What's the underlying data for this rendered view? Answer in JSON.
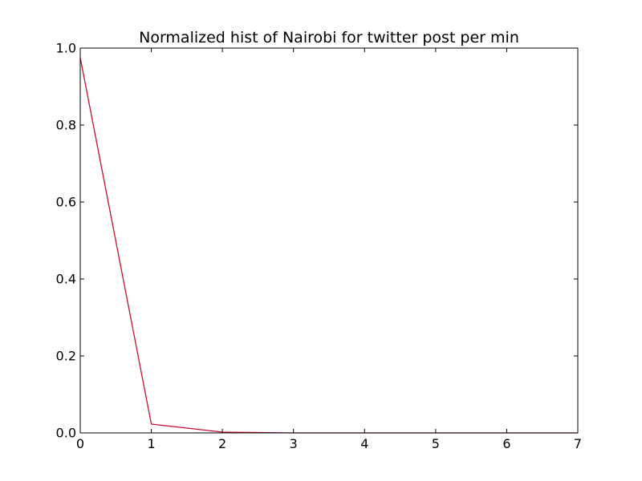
{
  "chart_data": {
    "type": "line",
    "title": "Normalized hist of Nairobi for twitter post per min",
    "xlabel": "",
    "ylabel": "",
    "xlim": [
      0,
      7
    ],
    "ylim": [
      0.0,
      1.0
    ],
    "x_ticks": [
      0,
      1,
      2,
      3,
      4,
      5,
      6,
      7
    ],
    "y_ticks": [
      0.0,
      0.2,
      0.4,
      0.6,
      0.8,
      1.0
    ],
    "x_tick_labels": [
      "0",
      "1",
      "2",
      "3",
      "4",
      "5",
      "6",
      "7"
    ],
    "y_tick_labels": [
      "0.0",
      "0.2",
      "0.4",
      "0.6",
      "0.8",
      "1.0"
    ],
    "grid": false,
    "legend": "none",
    "series": [
      {
        "color": "#c8102e",
        "x": [
          0,
          1,
          2,
          3,
          4,
          5,
          6,
          7
        ],
        "y": [
          0.975,
          0.023,
          0.002,
          0.0,
          0.0,
          0.0,
          0.0,
          0.0
        ]
      }
    ]
  }
}
